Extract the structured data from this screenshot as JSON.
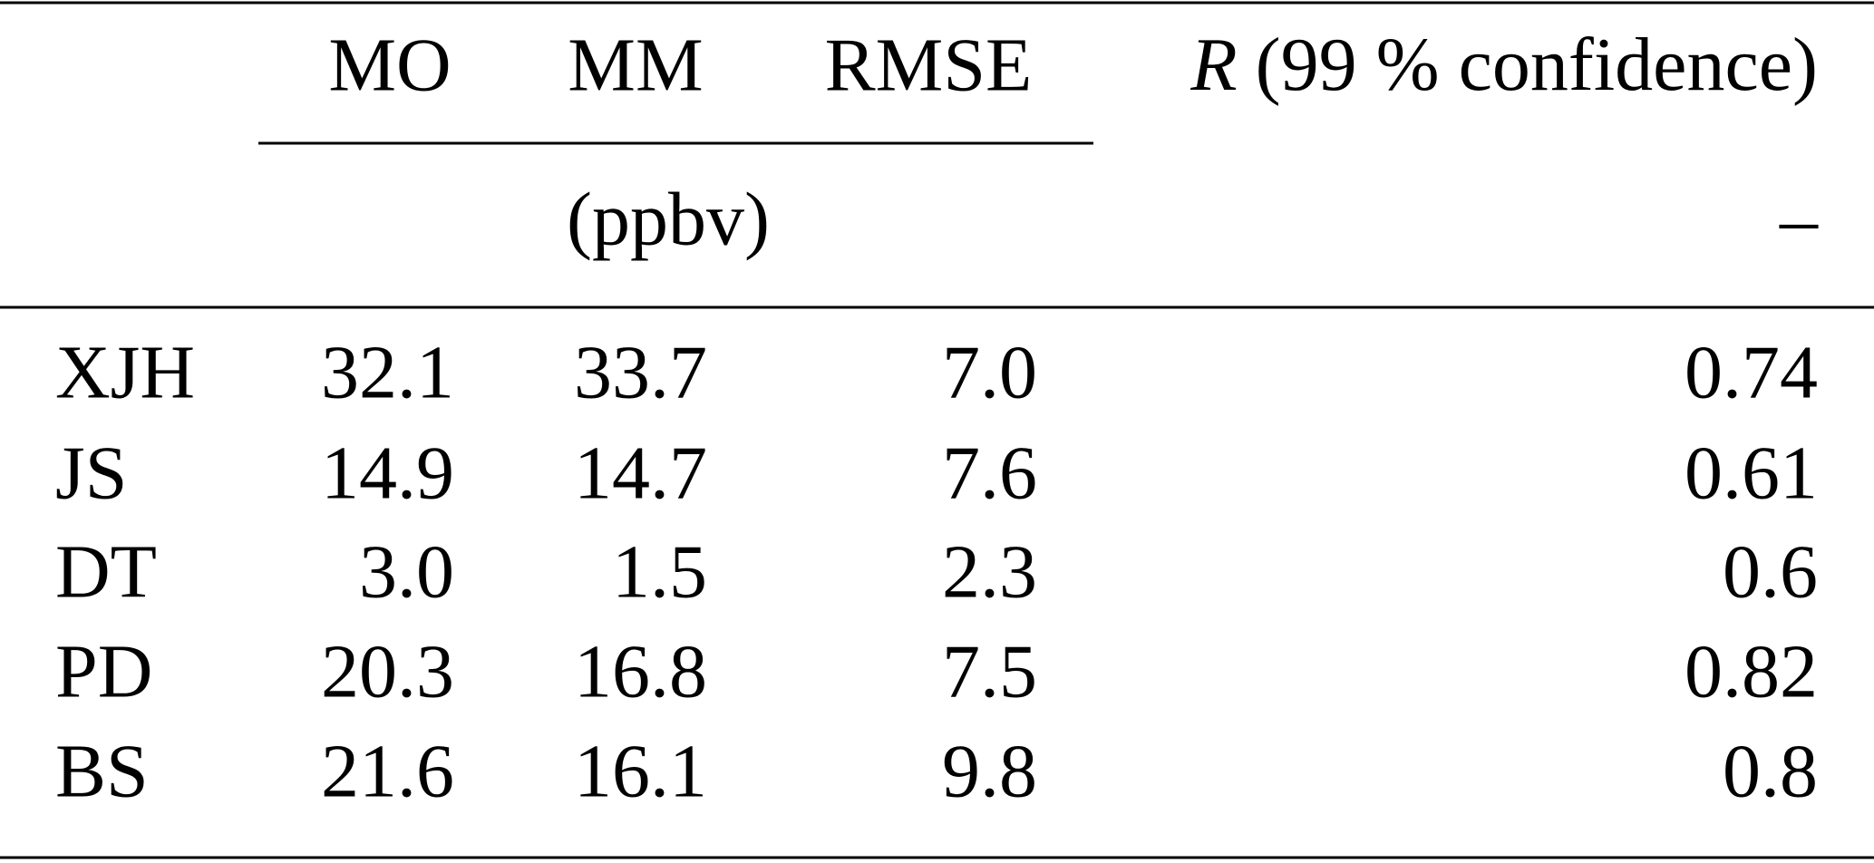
{
  "table": {
    "header": {
      "mo": "MO",
      "mm": "MM",
      "rmse": "RMSE",
      "r_symbol": "R",
      "r_text": "(99 % confidence)"
    },
    "units": {
      "group": "(ppbv)",
      "r": "–"
    },
    "rows": [
      [
        "XJH",
        "32.1",
        "33.7",
        "7.0",
        "0.74"
      ],
      [
        "JS",
        "14.9",
        "14.7",
        "7.6",
        "0.61"
      ],
      [
        "DT",
        "3.0",
        "1.5",
        "2.3",
        "0.6"
      ],
      [
        "PD",
        "20.3",
        "16.8",
        "7.5",
        "0.82"
      ],
      [
        "BS",
        "21.6",
        "16.1",
        "9.8",
        "0.8"
      ]
    ]
  }
}
